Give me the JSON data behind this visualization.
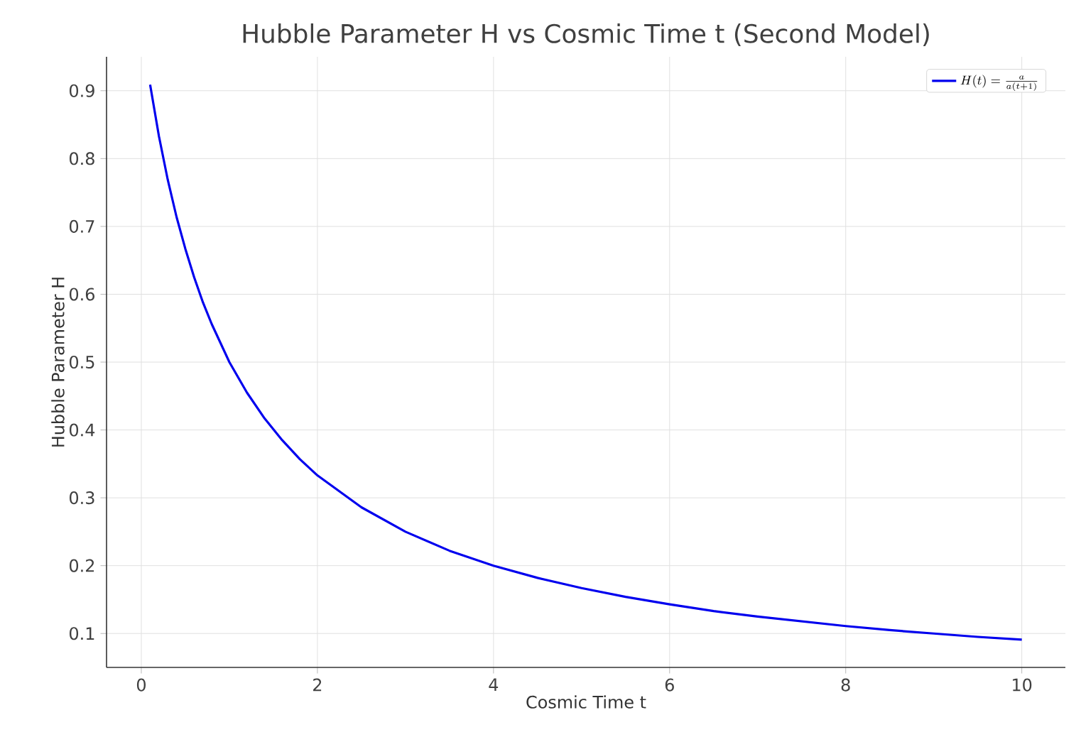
{
  "chart_data": {
    "type": "line",
    "title": "Hubble Parameter H vs Cosmic Time t (Second Model)",
    "xlabel": "Cosmic Time t",
    "ylabel": "Hubble Parameter H",
    "xlim": [
      -0.395,
      10.495
    ],
    "ylim": [
      0.05,
      0.95
    ],
    "xticks": [
      0,
      2,
      4,
      6,
      8,
      10
    ],
    "yticks": [
      0.1,
      0.2,
      0.3,
      0.4,
      0.5,
      0.6,
      0.7,
      0.8,
      0.9
    ],
    "grid": true,
    "legend": "top right",
    "series": [
      {
        "name": "H(t) = \\frac{a}{a(t+1)}",
        "color": "#0000ee",
        "x": [
          0.1,
          0.2,
          0.3,
          0.4,
          0.5,
          0.6,
          0.7,
          0.8,
          1,
          1.2,
          1.4,
          1.6,
          1.8,
          2,
          2.5,
          3,
          3.5,
          4,
          4.5,
          5,
          5.5,
          6,
          6.5,
          7,
          7.5,
          8,
          8.5,
          9,
          9.5,
          10
        ],
        "values": [
          0.909,
          0.833,
          0.769,
          0.714,
          0.667,
          0.625,
          0.588,
          0.556,
          0.5,
          0.455,
          0.417,
          0.385,
          0.357,
          0.333,
          0.286,
          0.25,
          0.222,
          0.2,
          0.182,
          0.167,
          0.154,
          0.143,
          0.133,
          0.125,
          0.118,
          0.111,
          0.105,
          0.1,
          0.095,
          0.091
        ]
      }
    ]
  }
}
